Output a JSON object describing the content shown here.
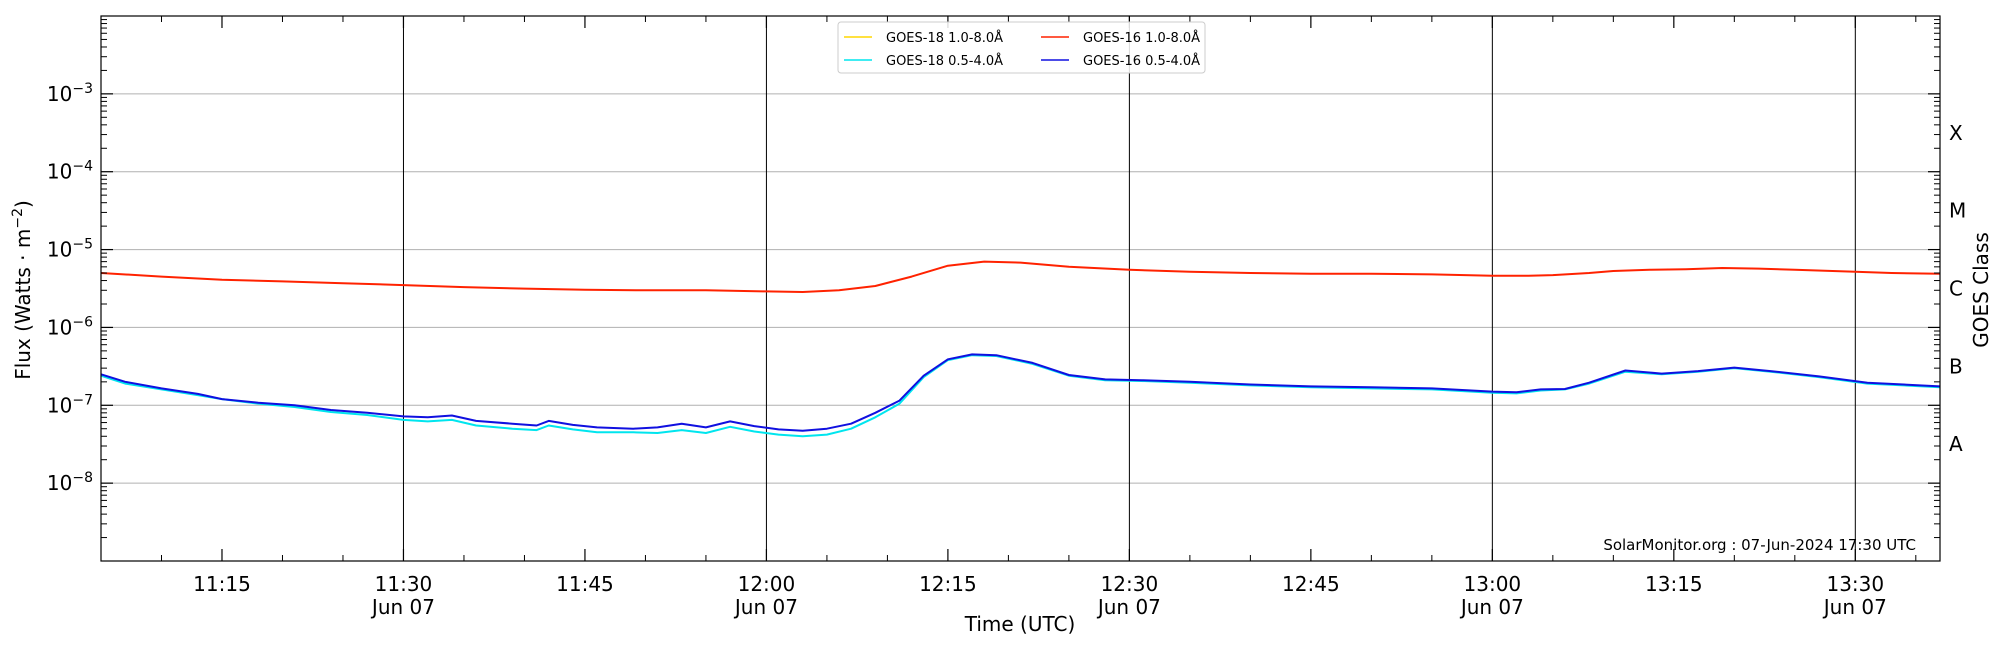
{
  "chart_data": {
    "type": "line",
    "xlabel": "Time (UTC)",
    "ylabel": "Flux (Watts · m",
    "ylabel_sup": "−2",
    "ylabel_close": ")",
    "y2label": "GOES Class",
    "yscale": "log",
    "ylim": [
      1e-09,
      0.01
    ],
    "xlim": [
      "11:05",
      "13:37"
    ],
    "grid": true,
    "legend_placement": "top-center",
    "credit": "SolarMonitor.org : 07-Jun-2024 17:30 UTC",
    "y_ticks": [
      {
        "value": 1e-08,
        "mant": "10",
        "exp": "−8"
      },
      {
        "value": 1e-07,
        "mant": "10",
        "exp": "−7"
      },
      {
        "value": 1e-06,
        "mant": "10",
        "exp": "−6"
      },
      {
        "value": 1e-05,
        "mant": "10",
        "exp": "−5"
      },
      {
        "value": 0.0001,
        "mant": "10",
        "exp": "−4"
      },
      {
        "value": 0.001,
        "mant": "10",
        "exp": "−3"
      }
    ],
    "x_ticks": [
      {
        "time": "11:15",
        "label": "11:15",
        "sub": ""
      },
      {
        "time": "11:30",
        "label": "11:30",
        "sub": "Jun 07"
      },
      {
        "time": "11:45",
        "label": "11:45",
        "sub": ""
      },
      {
        "time": "12:00",
        "label": "12:00",
        "sub": "Jun 07"
      },
      {
        "time": "12:15",
        "label": "12:15",
        "sub": ""
      },
      {
        "time": "12:30",
        "label": "12:30",
        "sub": "Jun 07"
      },
      {
        "time": "12:45",
        "label": "12:45",
        "sub": ""
      },
      {
        "time": "13:00",
        "label": "13:00",
        "sub": "Jun 07"
      },
      {
        "time": "13:15",
        "label": "13:15",
        "sub": ""
      },
      {
        "time": "13:30",
        "label": "13:30",
        "sub": "Jun 07"
      }
    ],
    "class_labels": [
      {
        "label": "A",
        "value": 3.162e-08
      },
      {
        "label": "B",
        "value": 3.162e-07
      },
      {
        "label": "C",
        "value": 3.162e-06
      },
      {
        "label": "M",
        "value": 3.162e-05
      },
      {
        "label": "X",
        "value": 0.0003162
      }
    ],
    "legend_order": [
      0,
      2,
      1,
      3
    ],
    "series": [
      {
        "name": "GOES-18 1.0-8.0Å",
        "color": "#ffd700",
        "points": []
      },
      {
        "name": "GOES-16 1.0-8.0Å",
        "color": "#ff2200",
        "points": [
          [
            "11:05",
            5e-06
          ],
          [
            "11:10",
            4.5e-06
          ],
          [
            "11:15",
            4.1e-06
          ],
          [
            "11:20",
            3.9e-06
          ],
          [
            "11:25",
            3.7e-06
          ],
          [
            "11:30",
            3.5e-06
          ],
          [
            "11:35",
            3.3e-06
          ],
          [
            "11:40",
            3.15e-06
          ],
          [
            "11:45",
            3.05e-06
          ],
          [
            "11:50",
            3e-06
          ],
          [
            "11:55",
            3e-06
          ],
          [
            "12:00",
            2.9e-06
          ],
          [
            "12:03",
            2.85e-06
          ],
          [
            "12:06",
            3e-06
          ],
          [
            "12:09",
            3.4e-06
          ],
          [
            "12:12",
            4.5e-06
          ],
          [
            "12:15",
            6.2e-06
          ],
          [
            "12:18",
            7e-06
          ],
          [
            "12:21",
            6.8e-06
          ],
          [
            "12:25",
            6e-06
          ],
          [
            "12:30",
            5.5e-06
          ],
          [
            "12:35",
            5.2e-06
          ],
          [
            "12:40",
            5e-06
          ],
          [
            "12:45",
            4.9e-06
          ],
          [
            "12:50",
            4.9e-06
          ],
          [
            "12:55",
            4.8e-06
          ],
          [
            "13:00",
            4.6e-06
          ],
          [
            "13:03",
            4.6e-06
          ],
          [
            "13:05",
            4.7e-06
          ],
          [
            "13:08",
            5e-06
          ],
          [
            "13:10",
            5.3e-06
          ],
          [
            "13:13",
            5.5e-06
          ],
          [
            "13:16",
            5.6e-06
          ],
          [
            "13:19",
            5.8e-06
          ],
          [
            "13:22",
            5.7e-06
          ],
          [
            "13:25",
            5.5e-06
          ],
          [
            "13:30",
            5.2e-06
          ],
          [
            "13:33",
            5e-06
          ],
          [
            "13:37",
            4.9e-06
          ]
        ]
      },
      {
        "name": "GOES-18 0.5-4.0Å",
        "color": "#00e5ee",
        "points": [
          [
            "11:05",
            2.4e-07
          ],
          [
            "11:07",
            1.9e-07
          ],
          [
            "11:10",
            1.6e-07
          ],
          [
            "11:13",
            1.35e-07
          ],
          [
            "11:15",
            1.2e-07
          ],
          [
            "11:18",
            1.05e-07
          ],
          [
            "11:21",
            9.5e-08
          ],
          [
            "11:24",
            8.2e-08
          ],
          [
            "11:27",
            7.5e-08
          ],
          [
            "11:30",
            6.5e-08
          ],
          [
            "11:32",
            6.2e-08
          ],
          [
            "11:34",
            6.5e-08
          ],
          [
            "11:36",
            5.5e-08
          ],
          [
            "11:39",
            5e-08
          ],
          [
            "11:41",
            4.8e-08
          ],
          [
            "11:42",
            5.5e-08
          ],
          [
            "11:44",
            4.9e-08
          ],
          [
            "11:46",
            4.5e-08
          ],
          [
            "11:49",
            4.5e-08
          ],
          [
            "11:51",
            4.4e-08
          ],
          [
            "11:53",
            4.8e-08
          ],
          [
            "11:55",
            4.4e-08
          ],
          [
            "11:57",
            5.3e-08
          ],
          [
            "11:59",
            4.6e-08
          ],
          [
            "12:01",
            4.2e-08
          ],
          [
            "12:03",
            4e-08
          ],
          [
            "12:05",
            4.2e-08
          ],
          [
            "12:07",
            5e-08
          ],
          [
            "12:09",
            7e-08
          ],
          [
            "12:11",
            1.05e-07
          ],
          [
            "12:13",
            2.3e-07
          ],
          [
            "12:15",
            3.8e-07
          ],
          [
            "12:17",
            4.4e-07
          ],
          [
            "12:19",
            4.3e-07
          ],
          [
            "12:22",
            3.4e-07
          ],
          [
            "12:25",
            2.4e-07
          ],
          [
            "12:28",
            2.1e-07
          ],
          [
            "12:31",
            2.05e-07
          ],
          [
            "12:35",
            1.95e-07
          ],
          [
            "12:40",
            1.8e-07
          ],
          [
            "12:45",
            1.7e-07
          ],
          [
            "12:50",
            1.65e-07
          ],
          [
            "12:55",
            1.6e-07
          ],
          [
            "13:00",
            1.45e-07
          ],
          [
            "13:02",
            1.42e-07
          ],
          [
            "13:04",
            1.55e-07
          ],
          [
            "13:06",
            1.6e-07
          ],
          [
            "13:08",
            1.9e-07
          ],
          [
            "13:11",
            2.7e-07
          ],
          [
            "13:14",
            2.5e-07
          ],
          [
            "13:17",
            2.7e-07
          ],
          [
            "13:20",
            3e-07
          ],
          [
            "13:23",
            2.7e-07
          ],
          [
            "13:27",
            2.3e-07
          ],
          [
            "13:31",
            1.9e-07
          ],
          [
            "13:34",
            1.8e-07
          ],
          [
            "13:37",
            1.7e-07
          ]
        ]
      },
      {
        "name": "GOES-16 0.5-4.0Å",
        "color": "#1010e0",
        "points": [
          [
            "11:05",
            2.5e-07
          ],
          [
            "11:07",
            2e-07
          ],
          [
            "11:10",
            1.65e-07
          ],
          [
            "11:13",
            1.4e-07
          ],
          [
            "11:15",
            1.2e-07
          ],
          [
            "11:18",
            1.08e-07
          ],
          [
            "11:21",
            1e-07
          ],
          [
            "11:24",
            8.7e-08
          ],
          [
            "11:27",
            8e-08
          ],
          [
            "11:30",
            7.2e-08
          ],
          [
            "11:32",
            7e-08
          ],
          [
            "11:34",
            7.4e-08
          ],
          [
            "11:36",
            6.3e-08
          ],
          [
            "11:39",
            5.8e-08
          ],
          [
            "11:41",
            5.5e-08
          ],
          [
            "11:42",
            6.3e-08
          ],
          [
            "11:44",
            5.6e-08
          ],
          [
            "11:46",
            5.2e-08
          ],
          [
            "11:49",
            5e-08
          ],
          [
            "11:51",
            5.2e-08
          ],
          [
            "11:53",
            5.8e-08
          ],
          [
            "11:55",
            5.2e-08
          ],
          [
            "11:57",
            6.2e-08
          ],
          [
            "11:59",
            5.4e-08
          ],
          [
            "12:01",
            4.9e-08
          ],
          [
            "12:03",
            4.7e-08
          ],
          [
            "12:05",
            5e-08
          ],
          [
            "12:07",
            5.8e-08
          ],
          [
            "12:09",
            8e-08
          ],
          [
            "12:11",
            1.15e-07
          ],
          [
            "12:13",
            2.4e-07
          ],
          [
            "12:15",
            3.9e-07
          ],
          [
            "12:17",
            4.5e-07
          ],
          [
            "12:19",
            4.4e-07
          ],
          [
            "12:22",
            3.5e-07
          ],
          [
            "12:25",
            2.45e-07
          ],
          [
            "12:28",
            2.15e-07
          ],
          [
            "12:31",
            2.1e-07
          ],
          [
            "12:35",
            2e-07
          ],
          [
            "12:40",
            1.85e-07
          ],
          [
            "12:45",
            1.75e-07
          ],
          [
            "12:50",
            1.7e-07
          ],
          [
            "12:55",
            1.65e-07
          ],
          [
            "13:00",
            1.5e-07
          ],
          [
            "13:02",
            1.47e-07
          ],
          [
            "13:04",
            1.6e-07
          ],
          [
            "13:06",
            1.62e-07
          ],
          [
            "13:08",
            1.95e-07
          ],
          [
            "13:11",
            2.8e-07
          ],
          [
            "13:14",
            2.55e-07
          ],
          [
            "13:17",
            2.75e-07
          ],
          [
            "13:20",
            3.05e-07
          ],
          [
            "13:23",
            2.75e-07
          ],
          [
            "13:27",
            2.35e-07
          ],
          [
            "13:31",
            1.95e-07
          ],
          [
            "13:34",
            1.85e-07
          ],
          [
            "13:37",
            1.75e-07
          ]
        ]
      }
    ]
  }
}
